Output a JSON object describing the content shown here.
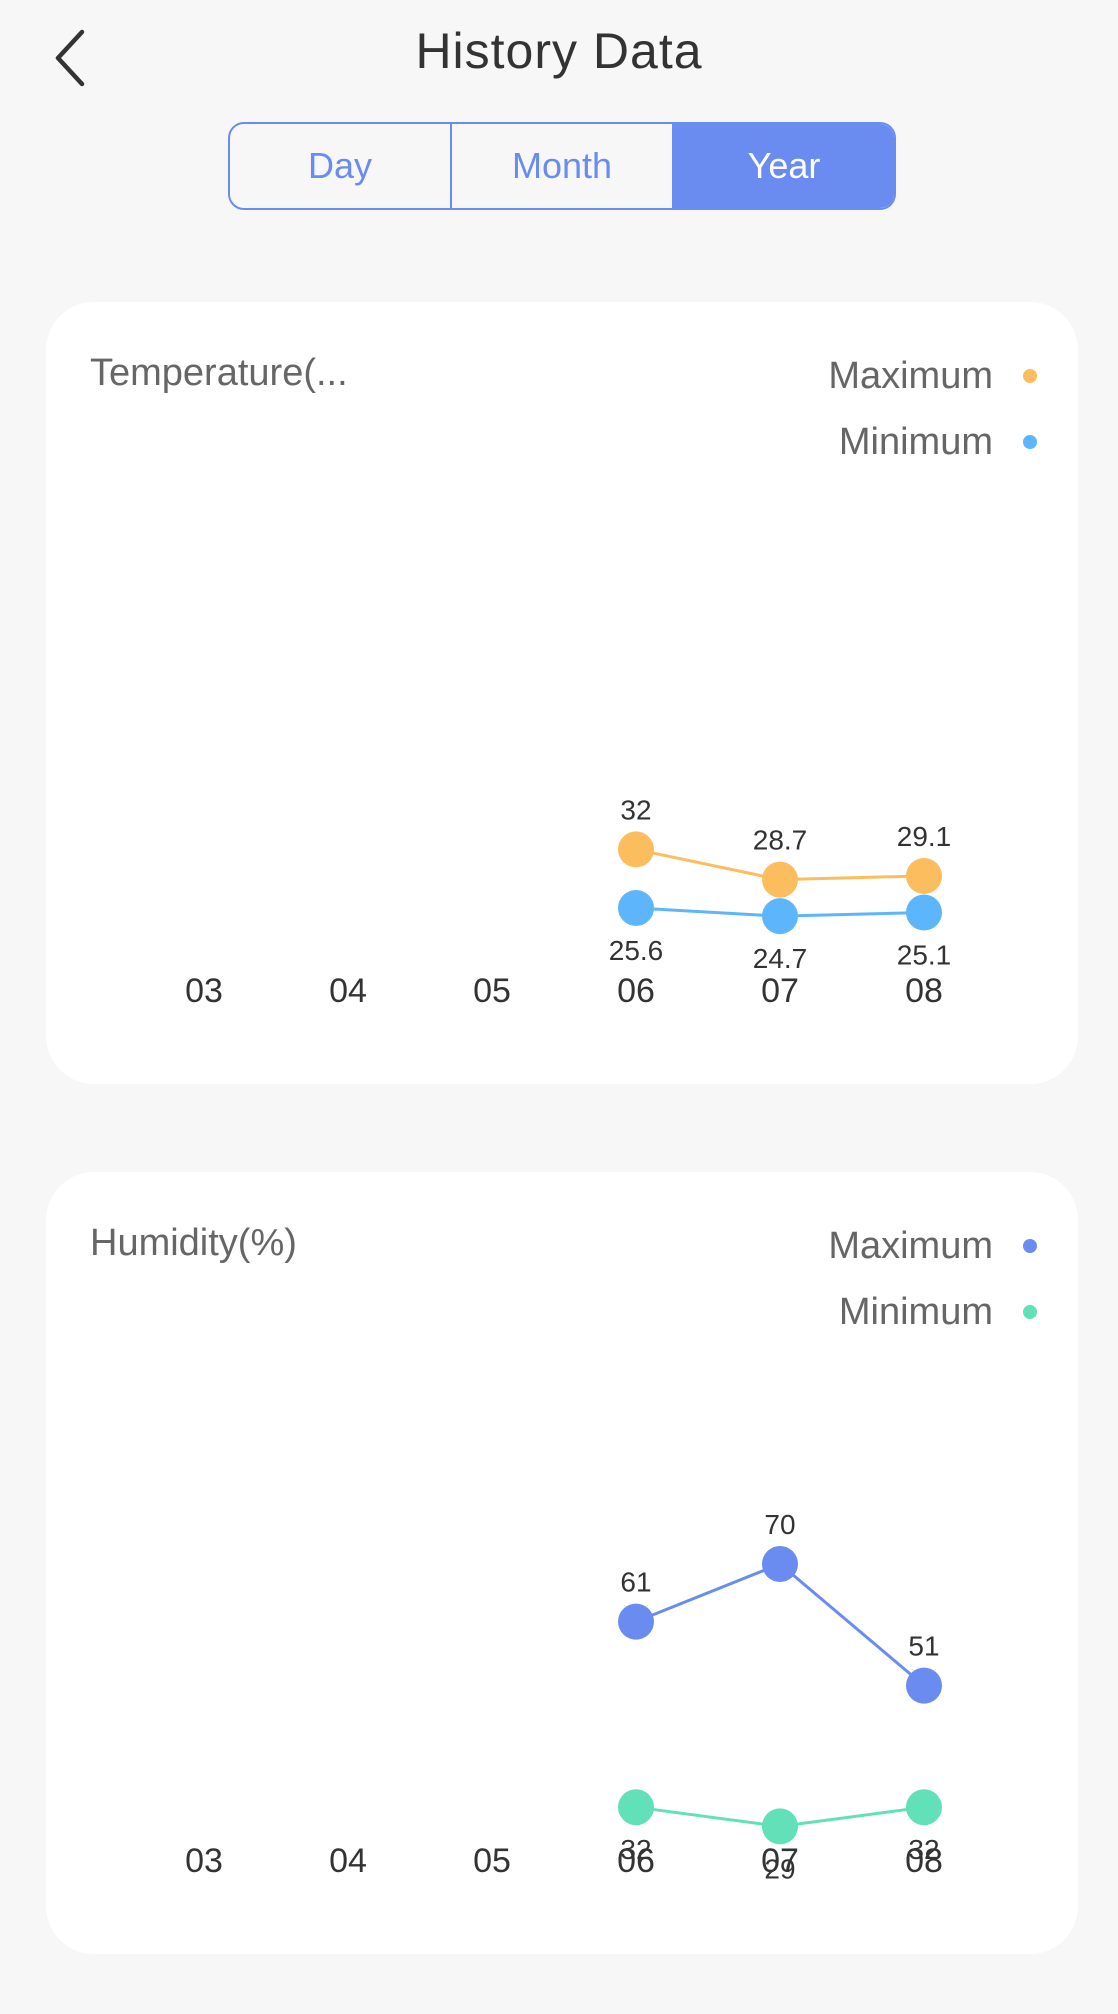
{
  "header": {
    "title": "History Data"
  },
  "tabs": [
    {
      "label": "Day",
      "active": false
    },
    {
      "label": "Month",
      "active": false
    },
    {
      "label": "Year",
      "active": true
    }
  ],
  "icons": {
    "back": "chevron-left-icon"
  },
  "colors": {
    "accent": "#6a8cf0",
    "temp_max": "#fbbd5e",
    "temp_min": "#5db6fb",
    "hum_max": "#6a8cf0",
    "hum_min": "#62e0b8"
  },
  "chart_data": [
    {
      "type": "line",
      "title": "Temperature(...",
      "x": [
        "03",
        "04",
        "05",
        "06",
        "07",
        "08"
      ],
      "ylim": [
        0,
        70
      ],
      "grid": false,
      "legend": "top-right",
      "series": [
        {
          "name": "Maximum",
          "color": "#fbbd5e",
          "values": [
            null,
            null,
            null,
            32,
            28.7,
            29.1
          ]
        },
        {
          "name": "Minimum",
          "color": "#5db6fb",
          "values": [
            null,
            null,
            null,
            25.6,
            24.7,
            25.1
          ]
        }
      ]
    },
    {
      "type": "line",
      "title": "Humidity(%)",
      "x": [
        "03",
        "04",
        "05",
        "06",
        "07",
        "08"
      ],
      "ylim": [
        0,
        100
      ],
      "grid": false,
      "legend": "top-right",
      "series": [
        {
          "name": "Maximum",
          "color": "#6a8cf0",
          "values": [
            null,
            null,
            null,
            61,
            70,
            51
          ]
        },
        {
          "name": "Minimum",
          "color": "#62e0b8",
          "values": [
            null,
            null,
            null,
            32,
            29,
            32
          ]
        }
      ]
    }
  ]
}
